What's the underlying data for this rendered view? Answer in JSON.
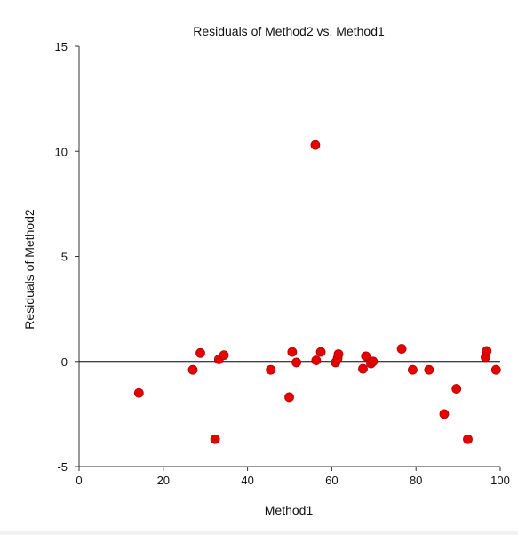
{
  "chart_data": {
    "type": "scatter",
    "title": "Residuals of Method2 vs. Method1",
    "xlabel": "Method1",
    "ylabel": "Residuals of Method2",
    "xlim": [
      0,
      100
    ],
    "ylim": [
      -5,
      15
    ],
    "xticks": [
      "0",
      "20",
      "40",
      "60",
      "80",
      "100"
    ],
    "yticks": [
      "-5",
      "0",
      "5",
      "10",
      "15"
    ],
    "reference_line_y": 0,
    "grid": false,
    "marker_color": "#e60000",
    "points": [
      {
        "x": 14.2,
        "y": -1.5
      },
      {
        "x": 27.0,
        "y": -0.4
      },
      {
        "x": 28.8,
        "y": 0.4
      },
      {
        "x": 32.3,
        "y": -3.7
      },
      {
        "x": 33.2,
        "y": 0.1
      },
      {
        "x": 34.4,
        "y": 0.3
      },
      {
        "x": 45.5,
        "y": -0.4
      },
      {
        "x": 49.9,
        "y": -1.7
      },
      {
        "x": 50.6,
        "y": 0.45
      },
      {
        "x": 51.6,
        "y": -0.05
      },
      {
        "x": 56.1,
        "y": 10.3
      },
      {
        "x": 56.3,
        "y": 0.05
      },
      {
        "x": 57.4,
        "y": 0.45
      },
      {
        "x": 60.9,
        "y": -0.05
      },
      {
        "x": 61.4,
        "y": 0.15
      },
      {
        "x": 61.6,
        "y": 0.35
      },
      {
        "x": 67.4,
        "y": -0.35
      },
      {
        "x": 68.1,
        "y": 0.25
      },
      {
        "x": 69.3,
        "y": -0.1
      },
      {
        "x": 69.8,
        "y": 0.0
      },
      {
        "x": 76.6,
        "y": 0.6
      },
      {
        "x": 79.2,
        "y": -0.4
      },
      {
        "x": 83.1,
        "y": -0.4
      },
      {
        "x": 86.7,
        "y": -2.5
      },
      {
        "x": 89.6,
        "y": -1.3
      },
      {
        "x": 92.3,
        "y": -3.7
      },
      {
        "x": 96.5,
        "y": 0.2
      },
      {
        "x": 96.8,
        "y": 0.5
      },
      {
        "x": 99.0,
        "y": -0.4
      }
    ]
  }
}
